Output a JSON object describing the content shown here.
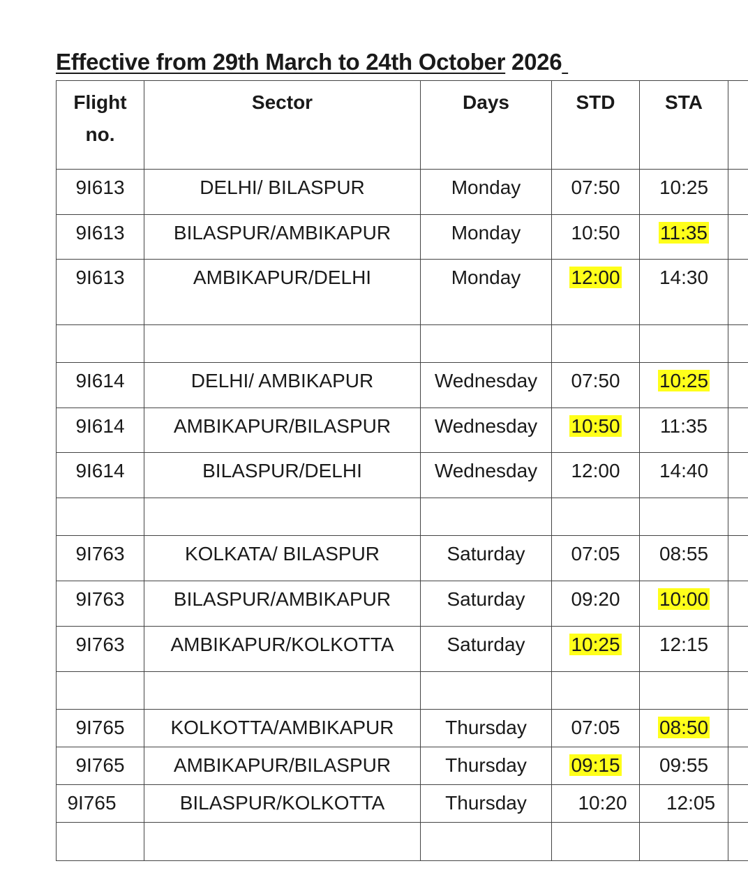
{
  "title": {
    "main": "Effective from 29th March to 24th October",
    "year": " 2026",
    "trail": " "
  },
  "columns": [
    "Flight no.",
    "Sector",
    "Days",
    "STD",
    "STA",
    ""
  ],
  "header_lines": {
    "flight_1": "Flight",
    "flight_2": "no."
  },
  "highlight_color": "#ffff1a",
  "rows": [
    {
      "flight": "9I613",
      "sector": "DELHI/ BILASPUR",
      "days": "Monday",
      "std": "07:50",
      "sta": "10:25"
    },
    {
      "flight": "9I613",
      "sector": "BILASPUR/AMBIKAPUR",
      "days": "Monday",
      "std": "10:50",
      "sta": "11:35",
      "sta_hl": true
    },
    {
      "flight": "9I613",
      "sector": "AMBIKAPUR/DELHI",
      "days": "Monday",
      "std": "12:00",
      "sta": "14:30",
      "std_hl": true,
      "tall": true
    },
    {
      "blank": true
    },
    {
      "flight": "9I614",
      "sector": "DELHI/ AMBIKAPUR",
      "days": "Wednesday",
      "std": "07:50",
      "sta": "10:25",
      "sta_hl": true
    },
    {
      "flight": "9I614",
      "sector": "AMBIKAPUR/BILASPUR",
      "days": "Wednesday",
      "std": "10:50",
      "sta": "11:35",
      "std_hl": true
    },
    {
      "flight": "9I614",
      "sector": "BILASPUR/DELHI",
      "days": "Wednesday",
      "std": "12:00",
      "sta": "14:40"
    },
    {
      "blank": true
    },
    {
      "flight": "9I763",
      "sector": "KOLKATA/ BILASPUR",
      "days": "Saturday",
      "std": "07:05",
      "sta": "08:55"
    },
    {
      "flight": "9I763",
      "sector": "BILASPUR/AMBIKAPUR",
      "days": "Saturday",
      "std": "09:20",
      "sta": "10:00",
      "sta_hl": true
    },
    {
      "flight": "9I763",
      "sector": "AMBIKAPUR/KOLKOTTA",
      "days": "Saturday",
      "std": "10:25",
      "sta": "12:15",
      "std_hl": true
    },
    {
      "blank": true
    },
    {
      "flight": "9I765",
      "sector": "KOLKOTTA/AMBIKAPUR",
      "days": "Thursday",
      "std": "07:05",
      "sta": "08:50",
      "sta_hl": true,
      "short": true
    },
    {
      "flight": "9I765",
      "sector": "AMBIKAPUR/BILASPUR",
      "days": "Thursday",
      "std": "09:15",
      "sta": "09:55",
      "std_hl": true,
      "short": true
    },
    {
      "flight": "9I765",
      "sector": "BILASPUR/KOLKOTTA",
      "days": "Thursday",
      "std": "10:20",
      "sta": "12:05",
      "short": true,
      "offset": true
    },
    {
      "blank": true
    }
  ]
}
